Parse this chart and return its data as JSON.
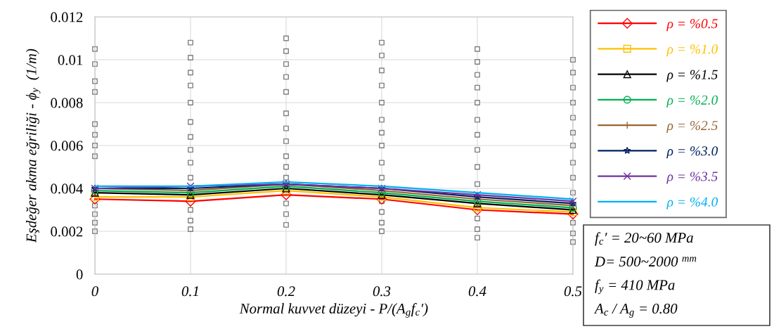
{
  "chart_data": {
    "type": "line",
    "xlabel": "Normal kuvvet düzeyi - P/(A$_{g}$f$_{c}$′)",
    "ylabel": "Eşdeğer akma eğriliği - ϕ$_{y}$  (1/m)",
    "x": [
      0,
      0.1,
      0.2,
      0.3,
      0.4,
      0.5
    ],
    "xlim": [
      0,
      0.5
    ],
    "xticks": [
      0,
      0.1,
      0.2,
      0.3,
      0.4,
      0.5
    ],
    "ylim": [
      0,
      0.012
    ],
    "yticks": [
      0,
      0.002,
      0.004,
      0.006,
      0.008,
      0.01,
      0.012
    ],
    "grid": true,
    "legend": "right",
    "series": [
      {
        "type": "scatter",
        "color": "#808080",
        "marker": "square",
        "x": [
          0,
          0,
          0,
          0,
          0,
          0,
          0,
          0,
          0,
          0,
          0,
          0,
          0.1,
          0.1,
          0.1,
          0.1,
          0.1,
          0.1,
          0.1,
          0.1,
          0.1,
          0.1,
          0.1,
          0.1,
          0.1,
          0.2,
          0.2,
          0.2,
          0.2,
          0.2,
          0.2,
          0.2,
          0.2,
          0.2,
          0.2,
          0.2,
          0.2,
          0.2,
          0.2,
          0.3,
          0.3,
          0.3,
          0.3,
          0.3,
          0.3,
          0.3,
          0.3,
          0.3,
          0.3,
          0.3,
          0.3,
          0.3,
          0.3,
          0.4,
          0.4,
          0.4,
          0.4,
          0.4,
          0.4,
          0.4,
          0.4,
          0.4,
          0.4,
          0.4,
          0.4,
          0.4,
          0.5,
          0.5,
          0.5,
          0.5,
          0.5,
          0.5,
          0.5,
          0.5,
          0.5,
          0.5,
          0.5,
          0.5,
          0.5
        ],
        "values": [
          0.002,
          0.0024,
          0.0028,
          0.0032,
          0.0055,
          0.006,
          0.0065,
          0.007,
          0.0085,
          0.009,
          0.0098,
          0.0105,
          0.0021,
          0.0025,
          0.003,
          0.0045,
          0.0052,
          0.0058,
          0.0064,
          0.0071,
          0.008,
          0.0088,
          0.0094,
          0.0101,
          0.0108,
          0.0023,
          0.0028,
          0.0033,
          0.0045,
          0.005,
          0.0055,
          0.0062,
          0.0068,
          0.0075,
          0.0085,
          0.0092,
          0.0098,
          0.0104,
          0.011,
          0.002,
          0.0024,
          0.0029,
          0.0034,
          0.0045,
          0.0052,
          0.006,
          0.0066,
          0.0072,
          0.008,
          0.0088,
          0.0095,
          0.0102,
          0.0108,
          0.0017,
          0.0021,
          0.0026,
          0.0042,
          0.005,
          0.0058,
          0.0065,
          0.0072,
          0.008,
          0.0087,
          0.0093,
          0.0099,
          0.0105,
          0.0015,
          0.0019,
          0.0024,
          0.0038,
          0.0045,
          0.0052,
          0.006,
          0.0066,
          0.0073,
          0.008,
          0.0087,
          0.0094,
          0.01
        ]
      },
      {
        "name": "ρ = %0.5",
        "color": "#ff0000",
        "marker": "diamond",
        "values": [
          0.0035,
          0.0034,
          0.0037,
          0.0035,
          0.003,
          0.0028
        ]
      },
      {
        "name": "ρ = %1.0",
        "color": "#ffc000",
        "marker": "square",
        "values": [
          0.0036,
          0.0036,
          0.0039,
          0.0036,
          0.0031,
          0.0029
        ]
      },
      {
        "name": "ρ = %1.5",
        "color": "#000000",
        "marker": "triangle",
        "values": [
          0.0038,
          0.0037,
          0.004,
          0.0037,
          0.0033,
          0.003
        ]
      },
      {
        "name": "ρ = %2.0",
        "color": "#00b050",
        "marker": "circle",
        "values": [
          0.0039,
          0.0038,
          0.0041,
          0.0038,
          0.0034,
          0.0031
        ]
      },
      {
        "name": "ρ = %2.5",
        "color": "#996633",
        "marker": "plus",
        "values": [
          0.004,
          0.0039,
          0.0042,
          0.0039,
          0.0035,
          0.0032
        ]
      },
      {
        "name": "ρ = %3.0",
        "color": "#002060",
        "marker": "star",
        "values": [
          0.004,
          0.004,
          0.0042,
          0.004,
          0.0036,
          0.0033
        ]
      },
      {
        "name": "ρ = %3.5",
        "color": "#7030a0",
        "marker": "cross",
        "values": [
          0.004,
          0.0041,
          0.0042,
          0.004,
          0.0037,
          0.0034
        ]
      },
      {
        "name": "ρ = %4.0",
        "color": "#00b0f0",
        "values": [
          0.0041,
          0.0041,
          0.0043,
          0.0041,
          0.0038,
          0.0035
        ]
      }
    ],
    "annotations": [
      "f$_{c}$′ = 20~60 MPa",
      "D= 500~2000 $^{mm}$",
      "f$_{y}$ = 410 MPa",
      "A$_{c}$ / A$_{g}$ = 0.80"
    ]
  }
}
